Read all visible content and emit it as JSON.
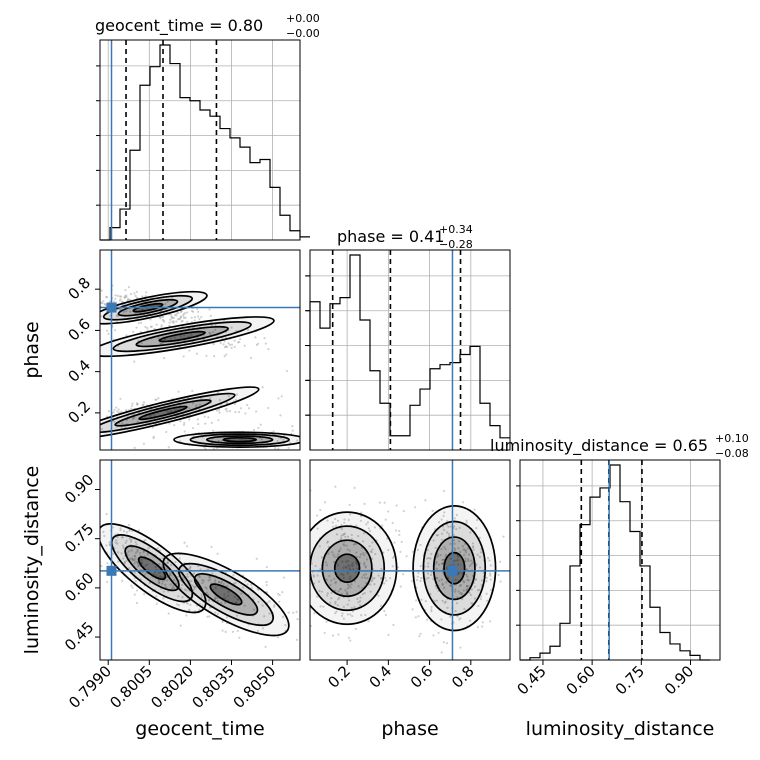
{
  "chart_data": {
    "type": "corner",
    "parameters": [
      "geocent_time",
      "phase",
      "luminosity_distance"
    ],
    "axis_labels": {
      "geocent_time": "geocent_time",
      "phase": "phase",
      "luminosity_distance": "luminosity_distance"
    },
    "ranges": {
      "geocent_time": [
        0.7987,
        0.806
      ],
      "phase": [
        0.02,
        0.99
      ],
      "luminosity_distance": [
        0.38,
        0.99
      ]
    },
    "ticks": {
      "geocent_time": [
        "0.7990",
        "0.8005",
        "0.8020",
        "0.8035",
        "0.8050"
      ],
      "phase": [
        "0.2",
        "0.4",
        "0.6",
        "0.8"
      ],
      "luminosity_distance": [
        "0.45",
        "0.60",
        "0.75",
        "0.90"
      ]
    },
    "tick_values": {
      "geocent_time": [
        0.799,
        0.8005,
        0.802,
        0.8035,
        0.805
      ],
      "phase": [
        0.2,
        0.4,
        0.6,
        0.8
      ],
      "luminosity_distance": [
        0.45,
        0.6,
        0.75,
        0.9
      ]
    },
    "phase_yticks": [
      "0.2",
      "0.4",
      "0.6",
      "0.8"
    ],
    "truths": {
      "geocent_time": 0.79912,
      "phase": 0.711,
      "luminosity_distance": 0.652
    },
    "titles": {
      "geocent_time": {
        "text": "geocent_time = 0.80",
        "plus": "+0.00",
        "minus": "−0.00"
      },
      "phase": {
        "text": "phase = 0.41",
        "plus": "+0.34",
        "minus": "−0.28"
      },
      "luminosity_distance": {
        "text": "luminosity_distance = 0.65",
        "plus": "+0.10",
        "minus": "−0.08"
      }
    },
    "quantiles": {
      "geocent_time": [
        0.79965,
        0.801,
        0.80295
      ],
      "phase": [
        0.13,
        0.41,
        0.75
      ],
      "luminosity_distance": [
        0.567,
        0.651,
        0.752
      ]
    },
    "histograms": {
      "geocent_time": {
        "edges_start": 0.7987,
        "bin_width": 0.000365,
        "counts": [
          0,
          4,
          10,
          29,
          50,
          56,
          63,
          57,
          46,
          45,
          42,
          40,
          36,
          33,
          30,
          25,
          26,
          17,
          8,
          3,
          1
        ]
      },
      "phase": {
        "edges_start": 0.02,
        "bin_width": 0.0485,
        "counts": [
          73,
          60,
          72,
          75,
          96,
          64,
          39,
          23,
          7,
          7,
          22,
          30,
          40,
          42,
          43,
          47,
          51,
          23,
          12,
          6
        ]
      },
      "luminosity_distance": {
        "edges_start": 0.38,
        "bin_width": 0.0305,
        "counts": [
          0,
          1,
          3,
          6,
          16,
          41,
          59,
          71,
          75,
          85,
          69,
          56,
          41,
          23,
          12,
          7,
          4,
          2,
          0
        ]
      }
    },
    "grid": true
  }
}
